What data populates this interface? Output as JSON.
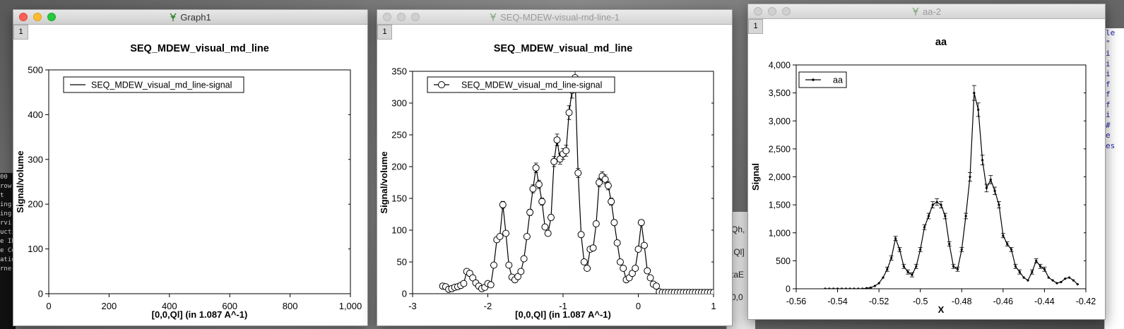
{
  "desktop": {
    "terminal_lines": [
      "00",
      "row",
      "t",
      "ing",
      "",
      "ing",
      "",
      "rvi",
      "",
      "ucti",
      "e IP",
      "",
      "e Co",
      "atio",
      "rne"
    ],
    "behind_window_lines": [
      "Qh,",
      ",Ql]",
      "taE",
      "0,0"
    ],
    "editor_lines": [
      "le",
      "\"",
      "i",
      "i",
      "i",
      "f",
      "f",
      "f",
      "",
      "i",
      "",
      "#",
      "e",
      "es"
    ]
  },
  "windows": [
    {
      "title": "Graph1",
      "tab": "1",
      "state": "active"
    },
    {
      "title": "SEQ-MDEW-visual-md-line-1",
      "tab": "1",
      "state": "inactive"
    },
    {
      "title": "aa-2",
      "tab": "1",
      "state": "inactive"
    }
  ],
  "chart_data": [
    {
      "type": "line",
      "title": "SEQ_MDEW_visual_md_line",
      "xlabel": "[0,0,Ql] (in 1.087 A^-1)",
      "ylabel": "Signal/volume",
      "xlim": [
        0,
        1000
      ],
      "ylim": [
        0,
        500
      ],
      "xticks": [
        0,
        200,
        400,
        600,
        800,
        1000
      ],
      "xtick_labels": [
        "0",
        "200",
        "400",
        "600",
        "800",
        "1,000"
      ],
      "yticks": [
        0,
        100,
        200,
        300,
        400,
        500
      ],
      "ytick_labels": [
        "0",
        "100",
        "200",
        "300",
        "400",
        "500"
      ],
      "legend_position": "top-left",
      "marker": "none",
      "series": [
        {
          "name": "SEQ_MDEW_visual_md_line-signal",
          "x": [
            0,
            5
          ],
          "y": [
            0,
            0
          ]
        }
      ]
    },
    {
      "type": "line",
      "title": "SEQ_MDEW_visual_md_line",
      "xlabel": "[0,0,Ql] (in 1.087 A^-1)",
      "ylabel": "Signal/volume",
      "xlim": [
        -3,
        1
      ],
      "ylim": [
        0,
        350
      ],
      "xticks": [
        -3,
        -2,
        -1,
        0,
        1
      ],
      "xtick_labels": [
        "-3",
        "-2",
        "-1",
        "0",
        "1"
      ],
      "yticks": [
        0,
        50,
        100,
        150,
        200,
        250,
        300,
        350
      ],
      "ytick_labels": [
        "0",
        "50",
        "100",
        "150",
        "200",
        "250",
        "300",
        "350"
      ],
      "legend_position": "top-left",
      "marker": "circle",
      "series": [
        {
          "name": "SEQ_MDEW_visual_md_line-signal",
          "x": [
            -2.6,
            -2.56,
            -2.52,
            -2.48,
            -2.44,
            -2.4,
            -2.36,
            -2.32,
            -2.28,
            -2.24,
            -2.2,
            -2.16,
            -2.12,
            -2.08,
            -2.04,
            -2.0,
            -1.96,
            -1.92,
            -1.88,
            -1.84,
            -1.8,
            -1.76,
            -1.72,
            -1.68,
            -1.64,
            -1.6,
            -1.56,
            -1.52,
            -1.48,
            -1.44,
            -1.4,
            -1.36,
            -1.32,
            -1.28,
            -1.24,
            -1.2,
            -1.16,
            -1.12,
            -1.08,
            -1.04,
            -1.0,
            -0.96,
            -0.92,
            -0.88,
            -0.84,
            -0.8,
            -0.76,
            -0.72,
            -0.68,
            -0.64,
            -0.6,
            -0.56,
            -0.52,
            -0.48,
            -0.44,
            -0.4,
            -0.36,
            -0.32,
            -0.28,
            -0.24,
            -0.2,
            -0.16,
            -0.12,
            -0.08,
            -0.04,
            0.0,
            0.04,
            0.08,
            0.12,
            0.16,
            0.2,
            0.24,
            0.28,
            0.32,
            0.36,
            0.4,
            0.44,
            0.48,
            0.52,
            0.56,
            0.6,
            0.64,
            0.68,
            0.72,
            0.76,
            0.8,
            0.84,
            0.88,
            0.92,
            0.96,
            1.0
          ],
          "y": [
            12,
            11,
            7,
            8,
            10,
            11,
            13,
            16,
            35,
            32,
            25,
            17,
            12,
            8,
            10,
            16,
            14,
            45,
            85,
            90,
            140,
            95,
            45,
            26,
            22,
            27,
            35,
            55,
            90,
            128,
            165,
            198,
            172,
            145,
            105,
            95,
            120,
            208,
            242,
            212,
            220,
            225,
            285,
            320,
            340,
            190,
            93,
            50,
            40,
            70,
            72,
            110,
            175,
            185,
            180,
            170,
            145,
            112,
            80,
            50,
            40,
            22,
            25,
            32,
            40,
            70,
            112,
            76,
            36,
            25,
            15,
            12,
            3,
            2,
            2,
            2,
            2,
            2,
            2,
            2,
            2,
            2,
            2,
            2,
            2,
            2,
            2,
            2,
            2,
            2,
            2
          ]
        }
      ]
    },
    {
      "type": "line",
      "title": "aa",
      "xlabel": "X",
      "ylabel": "Signal",
      "xlim": [
        -0.56,
        -0.42
      ],
      "ylim": [
        0,
        4000
      ],
      "xticks": [
        -0.56,
        -0.54,
        -0.52,
        -0.5,
        -0.48,
        -0.46,
        -0.44,
        -0.42
      ],
      "xtick_labels": [
        "-0.56",
        "-0.54",
        "-0.52",
        "-0.5",
        "-0.48",
        "-0.46",
        "-0.44",
        "-0.42"
      ],
      "yticks": [
        0,
        500,
        1000,
        1500,
        2000,
        2500,
        3000,
        3500,
        4000
      ],
      "ytick_labels": [
        "0",
        "500",
        "1,000",
        "1,500",
        "2,000",
        "2,500",
        "3,000",
        "3,500",
        "4,000"
      ],
      "legend_position": "top-left",
      "marker": "dot",
      "series": [
        {
          "name": "aa",
          "x": [
            -0.546,
            -0.544,
            -0.542,
            -0.54,
            -0.538,
            -0.536,
            -0.534,
            -0.532,
            -0.53,
            -0.528,
            -0.526,
            -0.524,
            -0.522,
            -0.52,
            -0.518,
            -0.516,
            -0.514,
            -0.512,
            -0.51,
            -0.508,
            -0.506,
            -0.504,
            -0.502,
            -0.5,
            -0.498,
            -0.496,
            -0.494,
            -0.492,
            -0.49,
            -0.488,
            -0.486,
            -0.484,
            -0.482,
            -0.48,
            -0.478,
            -0.476,
            -0.474,
            -0.472,
            -0.47,
            -0.468,
            -0.466,
            -0.464,
            -0.462,
            -0.46,
            -0.458,
            -0.456,
            -0.454,
            -0.452,
            -0.45,
            -0.448,
            -0.446,
            -0.444,
            -0.442,
            -0.44,
            -0.438,
            -0.436,
            -0.434,
            -0.432,
            -0.43,
            -0.428,
            -0.426,
            -0.424
          ],
          "y": [
            0,
            0,
            0,
            0,
            0,
            0,
            0,
            0,
            0,
            0,
            10,
            20,
            50,
            100,
            200,
            350,
            550,
            900,
            700,
            400,
            300,
            250,
            400,
            700,
            1100,
            1300,
            1500,
            1550,
            1500,
            1300,
            800,
            400,
            350,
            700,
            1300,
            2000,
            3500,
            3200,
            2300,
            1800,
            1950,
            1750,
            1500,
            950,
            800,
            700,
            400,
            300,
            200,
            150,
            300,
            500,
            400,
            350,
            200,
            150,
            100,
            120,
            180,
            200,
            150,
            80
          ]
        }
      ]
    }
  ]
}
